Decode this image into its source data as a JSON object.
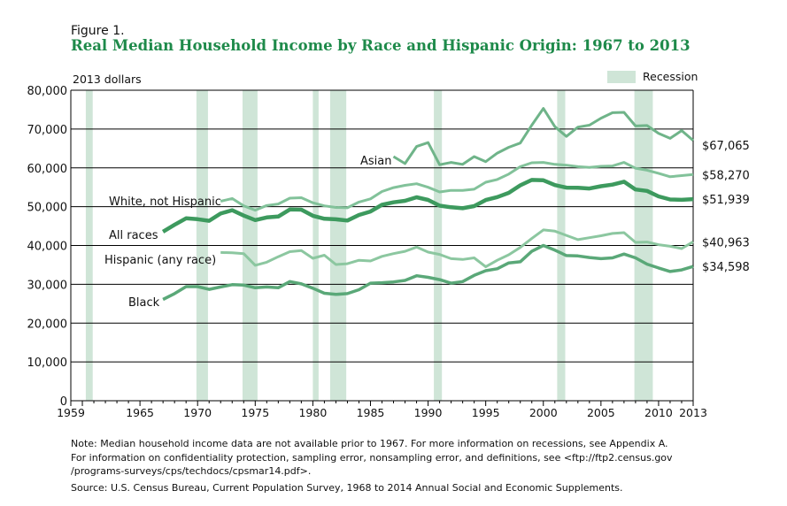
{
  "figure_label": "Figure 1.",
  "colors": {
    "title": "#1e8a4a",
    "recession": "#cfe5d7",
    "all_races": "#3d9a5e",
    "white": "#82c29a",
    "asian": "#6fb489",
    "hispanic": "#8cc7a0",
    "black": "#5aa878"
  },
  "chart_data": {
    "type": "line",
    "title": "Real Median Household Income by Race and Hispanic Origin: 1967 to 2013",
    "ylabel": "2013 dollars",
    "xlim": [
      1959,
      2013
    ],
    "ylim": [
      0,
      80000
    ],
    "x_ticks": [
      "1959",
      "1965",
      "1970",
      "1975",
      "1980",
      "1985",
      "1990",
      "1995",
      "2000",
      "2005",
      "2010",
      "2013"
    ],
    "y_ticks": [
      "0",
      "10,000",
      "20,000",
      "30,000",
      "40,000",
      "50,000",
      "60,000",
      "70,000",
      "80,000"
    ],
    "grid": "horizontal",
    "legend": {
      "label": "Recession",
      "placement": "top-right"
    },
    "recessions": [
      [
        1960.3,
        1960.9
      ],
      [
        1969.9,
        1970.9
      ],
      [
        1973.9,
        1975.2
      ],
      [
        1980.0,
        1980.5
      ],
      [
        1981.5,
        1982.9
      ],
      [
        1990.5,
        1991.2
      ],
      [
        2001.2,
        2001.9
      ],
      [
        2007.9,
        2009.5
      ]
    ],
    "series": [
      {
        "name": "Asian",
        "start": 1987,
        "end_label": "$67,065",
        "values": [
          62900,
          61100,
          65500,
          66500,
          60800,
          61400,
          60900,
          62900,
          61600,
          63800,
          65300,
          66400,
          71000,
          75300,
          70600,
          68100,
          70500,
          71000,
          72800,
          74200,
          74300,
          70800,
          70900,
          68900,
          67600,
          69600,
          67065
        ]
      },
      {
        "name": "White, not Hispanic",
        "start": 1972,
        "end_label": "$58,270",
        "values": [
          51400,
          52100,
          50200,
          49100,
          50300,
          50700,
          52200,
          52300,
          51000,
          50200,
          49800,
          49700,
          51200,
          52000,
          53900,
          54900,
          55500,
          55900,
          55000,
          53800,
          54200,
          54200,
          54500,
          56300,
          57000,
          58400,
          60300,
          61300,
          61400,
          60900,
          60700,
          60300,
          60100,
          60400,
          60500,
          61400,
          59900,
          59400,
          58600,
          57700,
          58000,
          58270
        ]
      },
      {
        "name": "All races",
        "start": 1967,
        "end_label": "$51,939",
        "values": [
          43558,
          45323,
          47004,
          46759,
          46369,
          48232,
          49091,
          47713,
          46537,
          47219,
          47449,
          49265,
          49225,
          47668,
          46877,
          46747,
          46425,
          47866,
          48761,
          50488,
          51121,
          51514,
          52432,
          51735,
          50249,
          49836,
          49594,
          50148,
          51719,
          52471,
          53551,
          55497,
          56895,
          56800,
          55562,
          54913,
          54865,
          54674,
          55278,
          55689,
          56436,
          54423,
          54059,
          52646,
          51842,
          51759,
          51939
        ]
      },
      {
        "name": "Hispanic (any race)",
        "start": 1972,
        "end_label": "$40,963",
        "values": [
          38200,
          38100,
          37900,
          34900,
          35700,
          37100,
          38400,
          38700,
          36700,
          37500,
          35100,
          35300,
          36200,
          36000,
          37200,
          37900,
          38500,
          39600,
          38300,
          37700,
          36600,
          36400,
          36800,
          34500,
          36200,
          37600,
          39500,
          41800,
          44000,
          43700,
          42600,
          41500,
          42000,
          42500,
          43100,
          43300,
          40800,
          40900,
          40200,
          39800,
          39200,
          40963
        ]
      },
      {
        "name": "Black",
        "start": 1967,
        "end_label": "$34,598",
        "values": [
          26100,
          27600,
          29400,
          29400,
          28700,
          29300,
          29900,
          29800,
          29100,
          29300,
          29100,
          30700,
          30100,
          29000,
          27700,
          27400,
          27600,
          28600,
          30300,
          30400,
          30600,
          31000,
          32200,
          31800,
          31200,
          30300,
          30700,
          32300,
          33500,
          34000,
          35500,
          35800,
          38500,
          40000,
          38800,
          37400,
          37300,
          36900,
          36600,
          36800,
          37800,
          36800,
          35200,
          34200,
          33300,
          33700,
          34598
        ]
      }
    ]
  },
  "notes": {
    "line1": "Note: Median household income data are not available prior to 1967. For more information on recessions, see Appendix A.",
    "line2": "For information on confidentiality protection, sampling error, nonsampling error, and definitions, see <ftp://ftp2.census.gov",
    "line3": "/programs-surveys/cps/techdocs/cpsmar14.pdf>.",
    "source": "Source: U.S. Census Bureau, Current Population Survey, 1968 to 2014 Annual Social and Economic Supplements."
  }
}
